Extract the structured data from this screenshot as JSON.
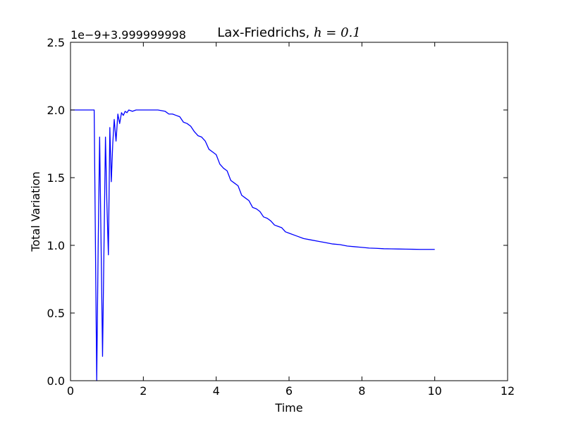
{
  "chart_data": {
    "type": "line",
    "title": "Lax-Friedrichs, ",
    "title_math": "h = 0.1",
    "xlabel": "Time",
    "ylabel": "Total Variation",
    "y_offset_text": "1e−9+3.999999998",
    "xlim": [
      0,
      12
    ],
    "ylim": [
      0,
      2.5
    ],
    "xticks": [
      0,
      2,
      4,
      6,
      8,
      10,
      12
    ],
    "xtick_labels": [
      "0",
      "2",
      "4",
      "6",
      "8",
      "10",
      "12"
    ],
    "yticks": [
      0,
      0.5,
      1.0,
      1.5,
      2.0,
      2.5
    ],
    "ytick_labels": [
      "0.0",
      "0.5",
      "1.0",
      "1.5",
      "2.0",
      "2.5"
    ],
    "grid": false,
    "line_color": "#0000ff",
    "series": [
      {
        "x": [
          0,
          0.1,
          0.2,
          0.3,
          0.4,
          0.5,
          0.6,
          0.65,
          0.72,
          0.76,
          0.8,
          0.84,
          0.88,
          0.92,
          0.96,
          1.0,
          1.04,
          1.08,
          1.12,
          1.16,
          1.2,
          1.25,
          1.3,
          1.35,
          1.4,
          1.45,
          1.5,
          1.55,
          1.6,
          1.7,
          1.8,
          1.9,
          2.0,
          2.2,
          2.4,
          2.6,
          2.7,
          2.8,
          2.9,
          3.0,
          3.1,
          3.2,
          3.3,
          3.4,
          3.5,
          3.6,
          3.7,
          3.8,
          3.9,
          4.0,
          4.1,
          4.2,
          4.3,
          4.4,
          4.5,
          4.6,
          4.7,
          4.8,
          4.9,
          5.0,
          5.1,
          5.2,
          5.3,
          5.4,
          5.5,
          5.6,
          5.7,
          5.8,
          5.9,
          6.0,
          6.2,
          6.4,
          6.6,
          6.8,
          7.0,
          7.2,
          7.4,
          7.6,
          7.8,
          8.0,
          8.2,
          8.4,
          8.6,
          8.8,
          9.0,
          9.2,
          9.4,
          9.6,
          9.8,
          10.0
        ],
        "y": [
          2.0,
          2.0,
          2.0,
          2.0,
          2.0,
          2.0,
          2.0,
          2.0,
          0.0,
          1.0,
          1.8,
          1.0,
          0.18,
          1.0,
          1.8,
          1.3,
          0.93,
          1.87,
          1.47,
          1.75,
          1.93,
          1.77,
          1.97,
          1.9,
          1.98,
          1.96,
          1.99,
          1.98,
          2.0,
          1.99,
          2.0,
          2.0,
          2.0,
          2.0,
          2.0,
          1.99,
          1.97,
          1.97,
          1.96,
          1.95,
          1.91,
          1.9,
          1.88,
          1.84,
          1.81,
          1.8,
          1.77,
          1.71,
          1.69,
          1.67,
          1.6,
          1.57,
          1.55,
          1.48,
          1.46,
          1.44,
          1.37,
          1.35,
          1.33,
          1.28,
          1.27,
          1.25,
          1.21,
          1.2,
          1.18,
          1.15,
          1.14,
          1.13,
          1.1,
          1.09,
          1.07,
          1.05,
          1.04,
          1.03,
          1.02,
          1.01,
          1.005,
          0.995,
          0.99,
          0.985,
          0.98,
          0.978,
          0.975,
          0.974,
          0.973,
          0.972,
          0.971,
          0.97,
          0.97,
          0.97
        ]
      }
    ]
  }
}
